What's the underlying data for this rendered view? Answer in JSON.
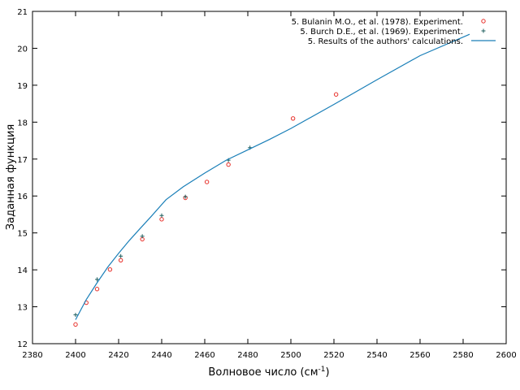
{
  "chart_data": {
    "type": "scatter",
    "title": "",
    "xlabel": "Волновое число (см",
    "xlabel_sup": "-1",
    "xlabel_close": ")",
    "ylabel": "Заданная функция",
    "xlim": [
      2380,
      2600
    ],
    "ylim": [
      12,
      21
    ],
    "xticks": [
      2380,
      2400,
      2420,
      2440,
      2460,
      2480,
      2500,
      2520,
      2540,
      2560,
      2580,
      2600
    ],
    "yticks": [
      12,
      13,
      14,
      15,
      16,
      17,
      18,
      19,
      20,
      21
    ],
    "grid": false,
    "legend_position": "top-right",
    "series": [
      {
        "name": "5. Bulanin M.O., et al. (1978). Experiment.",
        "kind": "points",
        "marker": "open-circle",
        "color": "#e8302a",
        "x": [
          2400,
          2405,
          2410,
          2416,
          2421,
          2431,
          2440,
          2451,
          2461,
          2471,
          2501,
          2521
        ],
        "y": [
          12.52,
          13.11,
          13.48,
          14.01,
          14.26,
          14.83,
          15.37,
          15.95,
          16.38,
          16.85,
          18.1,
          18.75
        ]
      },
      {
        "name": "5. Burch D.E., et al. (1969). Experiment.",
        "kind": "points",
        "marker": "plus",
        "color": "#1f5f5f",
        "x": [
          2400,
          2410,
          2421,
          2431,
          2440,
          2451,
          2471,
          2481
        ],
        "y": [
          12.78,
          13.74,
          14.37,
          14.91,
          15.47,
          15.98,
          16.97,
          17.31
        ]
      },
      {
        "name": "5. Results of the authors' calculations.",
        "kind": "line",
        "color": "#1a7fb8",
        "x": [
          2400,
          2405,
          2410,
          2415,
          2420,
          2425,
          2430,
          2435,
          2442,
          2450,
          2460,
          2470,
          2480,
          2490,
          2500,
          2520,
          2540,
          2560,
          2583
        ],
        "y": [
          12.65,
          13.2,
          13.65,
          14.08,
          14.45,
          14.8,
          15.12,
          15.44,
          15.9,
          16.25,
          16.62,
          16.97,
          17.25,
          17.53,
          17.83,
          18.48,
          19.15,
          19.8,
          20.38
        ]
      }
    ]
  }
}
